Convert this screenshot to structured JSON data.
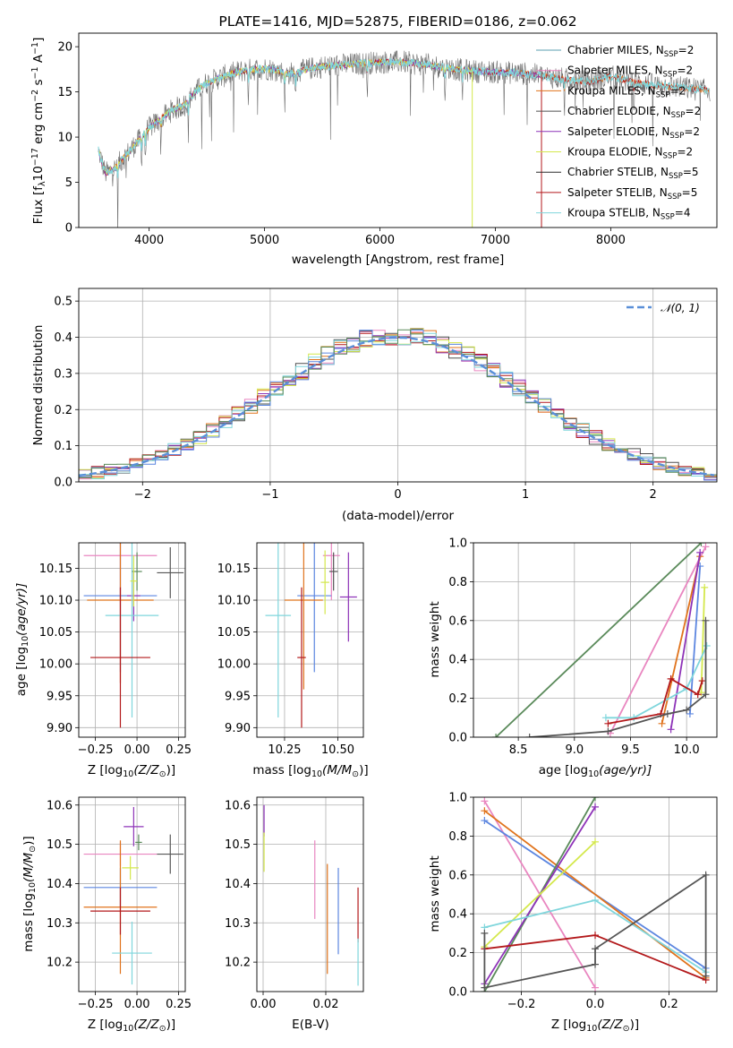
{
  "colors": {
    "chabrier_miles": "#5b9fb0",
    "salpeter_miles": "#e986c0",
    "kroupa_miles": "#e0731c",
    "chabrier_elodie": "#4f4f4f",
    "salpeter_elodie": "#8e33b8",
    "kroupa_elodie": "#d4e84c",
    "chabrier_stelib": "#2b2b2b",
    "salpeter_stelib": "#b3191b",
    "kroupa_stelib": "#7fd6dc",
    "blue_model": "#5c86e0",
    "green_model": "#5a8a5a",
    "gray_model": "#555555",
    "normal_curve": "#5a8fd8"
  },
  "chart_data": [
    {
      "id": "spectrum",
      "type": "line",
      "title": "PLATE=1416, MJD=52875, FIBERID=0186, z=0.062",
      "xlabel": "wavelength [Angstrom, rest frame]",
      "ylabel_pre": "Flux [f",
      "ylabel_sub": "λ",
      "ylabel_mid": "10",
      "ylabel_sup": "−17",
      "ylabel_post": " erg cm",
      "ylabel_sup2": "−2",
      "ylabel_post2": " s",
      "ylabel_sup3": "−1",
      "ylabel_post3": " A",
      "ylabel_sup4": "−1",
      "ylabel_end": "]",
      "xlim": [
        3390,
        8920
      ],
      "ylim": [
        0,
        21.5
      ],
      "xticks": [
        4000,
        5000,
        6000,
        7000,
        8000
      ],
      "yticks": [
        0,
        5,
        10,
        15,
        20
      ],
      "grid": false,
      "legend_position": "right",
      "legend": [
        {
          "name": "Chabrier MILES, N",
          "sub": "SSP",
          "post": "=2",
          "color_key": "chabrier_miles"
        },
        {
          "name": "Salpeter MILES, N",
          "sub": "SSP",
          "post": "=2",
          "color_key": "salpeter_miles"
        },
        {
          "name": "Kroupa MILES, N",
          "sub": "SSP",
          "post": "=2",
          "color_key": "kroupa_miles"
        },
        {
          "name": "Chabrier ELODIE, N",
          "sub": "SSP",
          "post": "=2",
          "color_key": "chabrier_elodie"
        },
        {
          "name": "Salpeter ELODIE, N",
          "sub": "SSP",
          "post": "=2",
          "color_key": "salpeter_elodie"
        },
        {
          "name": "Kroupa ELODIE, N",
          "sub": "SSP",
          "post": "=2",
          "color_key": "kroupa_elodie"
        },
        {
          "name": "Chabrier STELIB, N",
          "sub": "SSP",
          "post": "=5",
          "color_key": "chabrier_stelib"
        },
        {
          "name": "Salpeter STELIB, N",
          "sub": "SSP",
          "post": "=5",
          "color_key": "salpeter_stelib"
        },
        {
          "name": "Kroupa STELIB, N",
          "sub": "SSP",
          "post": "=4",
          "color_key": "kroupa_stelib"
        }
      ],
      "continuum": {
        "x": [
          3560,
          3620,
          3700,
          3800,
          3900,
          4000,
          4100,
          4200,
          4300,
          4400,
          4500,
          4600,
          4700,
          4800,
          4900,
          5000,
          5100,
          5200,
          5300,
          5400,
          5500,
          5600,
          5700,
          5800,
          5900,
          6000,
          6200,
          6400,
          6600,
          6800,
          7000,
          7200,
          7400,
          7600,
          7800,
          8000,
          8200,
          8400,
          8600,
          8800
        ],
        "y": [
          8.5,
          6.0,
          6.5,
          8.0,
          9.5,
          11.0,
          12.0,
          13.0,
          13.5,
          15.0,
          16.0,
          16.5,
          17.0,
          17.3,
          17.5,
          17.6,
          17.4,
          17.0,
          17.2,
          17.6,
          17.8,
          17.9,
          18.0,
          18.1,
          18.2,
          18.3,
          18.3,
          18.0,
          17.6,
          17.3,
          17.2,
          17.1,
          16.8,
          16.4,
          16.1,
          16.7,
          16.1,
          15.7,
          15.5,
          15.2
        ]
      },
      "model_end_wavelengths": [
        6800,
        7400
      ]
    },
    {
      "id": "residuals",
      "type": "line",
      "title": "",
      "xlabel": "(data-model)/error",
      "ylabel": "Normed distribution",
      "xlim": [
        -2.5,
        2.5
      ],
      "ylim": [
        0,
        0.535
      ],
      "xticks": [
        -2,
        -1,
        0,
        1,
        2
      ],
      "yticks": [
        0.0,
        0.1,
        0.2,
        0.3,
        0.4,
        0.5
      ],
      "grid": true,
      "legend_position": "top-right",
      "legend": [
        {
          "name": "𝒩(0, 1)",
          "color_key": "normal_curve"
        }
      ],
      "histogram_bin_width": 0.1,
      "histogram_series": [
        "salpeter_miles",
        "kroupa_miles",
        "chabrier_elodie",
        "salpeter_elodie",
        "kroupa_elodie",
        "salpeter_stelib",
        "kroupa_stelib",
        "blue_model",
        "green_model"
      ]
    },
    {
      "id": "age_vs_z",
      "type": "scatter",
      "xlabel": "Z [log",
      "xlabel_sub": "10",
      "xlabel_post": "(Z/Z",
      "xlabel_sub2": "⊙",
      "xlabel_end": ")]",
      "ylabel": "age  [log",
      "ylabel_sub": "10",
      "ylabel_post": "(age/yr)]",
      "xlim": [
        -0.35,
        0.29
      ],
      "ylim": [
        9.885,
        10.19
      ],
      "xticks": [
        -0.25,
        0.0,
        0.25
      ],
      "xticklabels": [
        "−0.25",
        "0.00",
        "0.25"
      ],
      "yticks": [
        9.9,
        9.95,
        10.0,
        10.05,
        10.1,
        10.15
      ],
      "yticklabels": [
        "9.90",
        "9.95",
        "10.00",
        "10.05",
        "10.10",
        "10.15"
      ],
      "grid": true,
      "points": [
        {
          "x": -0.1,
          "y": 10.17,
          "xerr": 0.22,
          "yerr": 0.07,
          "color_key": "salpeter_miles"
        },
        {
          "x": -0.1,
          "y": 10.107,
          "xerr": 0.22,
          "yerr": 0.12,
          "color_key": "blue_model"
        },
        {
          "x": -0.02,
          "y": 10.107,
          "xerr": 0.04,
          "yerr": 0.04,
          "color_key": "salpeter_elodie"
        },
        {
          "x": -0.1,
          "y": 10.1,
          "xerr": 0.2,
          "yerr": 0.13,
          "color_key": "kroupa_miles"
        },
        {
          "x": -0.03,
          "y": 10.076,
          "xerr": 0.16,
          "yerr": 0.16,
          "color_key": "kroupa_stelib"
        },
        {
          "x": -0.1,
          "y": 10.01,
          "xerr": 0.18,
          "yerr": 0.11,
          "color_key": "salpeter_stelib"
        },
        {
          "x": 0.0,
          "y": 10.145,
          "xerr": 0.03,
          "yerr": 0.03,
          "color_key": "green_model"
        },
        {
          "x": 0.2,
          "y": 10.143,
          "xerr": 0.08,
          "yerr": 0.04,
          "color_key": "gray_model"
        },
        {
          "x": -0.02,
          "y": 10.13,
          "xerr": 0.02,
          "yerr": 0.04,
          "color_key": "kroupa_elodie"
        }
      ]
    },
    {
      "id": "age_vs_mass",
      "type": "scatter",
      "xlabel": "mass [log",
      "xlabel_sub": "10",
      "xlabel_post": "(M/M",
      "xlabel_sub2": "⊙",
      "xlabel_end": ")]",
      "ylabel": "",
      "xlim": [
        10.12,
        10.62
      ],
      "ylim": [
        9.885,
        10.19
      ],
      "xticks": [
        10.25,
        10.5
      ],
      "xticklabels": [
        "10.25",
        "10.50"
      ],
      "yticks": [
        9.9,
        9.95,
        10.0,
        10.05,
        10.1,
        10.15
      ],
      "yticklabels": [
        "9.90",
        "9.95",
        "10.00",
        "10.05",
        "10.10",
        "10.15"
      ],
      "grid": true,
      "points": [
        {
          "x": 10.47,
          "y": 10.17,
          "xerr": 0.04,
          "yerr": 0.07,
          "color_key": "salpeter_miles"
        },
        {
          "x": 10.39,
          "y": 10.107,
          "xerr": 0.08,
          "yerr": 0.12,
          "color_key": "blue_model"
        },
        {
          "x": 10.55,
          "y": 10.105,
          "xerr": 0.04,
          "yerr": 0.07,
          "color_key": "salpeter_elodie"
        },
        {
          "x": 10.34,
          "y": 10.1,
          "xerr": 0.09,
          "yerr": 0.14,
          "color_key": "kroupa_miles"
        },
        {
          "x": 10.22,
          "y": 10.076,
          "xerr": 0.06,
          "yerr": 0.16,
          "color_key": "kroupa_stelib"
        },
        {
          "x": 10.33,
          "y": 10.01,
          "xerr": 0.02,
          "yerr": 0.11,
          "color_key": "salpeter_stelib"
        },
        {
          "x": 10.48,
          "y": 10.145,
          "xerr": 0.02,
          "yerr": 0.03,
          "color_key": "gray_model"
        },
        {
          "x": 10.44,
          "y": 10.128,
          "xerr": 0.02,
          "yerr": 0.05,
          "color_key": "kroupa_elodie"
        }
      ]
    },
    {
      "id": "weight_vs_age",
      "type": "line",
      "xlabel": "age  [log",
      "xlabel_sub": "10",
      "xlabel_post": "(age/yr)]",
      "ylabel": "mass weight",
      "xlim": [
        8.1,
        10.27
      ],
      "ylim": [
        0,
        1.0
      ],
      "xticks": [
        8.5,
        9.0,
        9.5,
        10.0
      ],
      "xticklabels": [
        "8.5",
        "9.0",
        "9.5",
        "10.0"
      ],
      "yticks": [
        0.0,
        0.2,
        0.4,
        0.6,
        0.8,
        1.0
      ],
      "yticklabels": [
        "0.0",
        "0.2",
        "0.4",
        "0.6",
        "0.8",
        "1.0"
      ],
      "grid": true,
      "series": [
        {
          "color_key": "green_model",
          "x": [
            8.3,
            10.13
          ],
          "y": [
            0.0,
            1.0
          ]
        },
        {
          "color_key": "salpeter_miles",
          "x": [
            9.32,
            10.17
          ],
          "y": [
            0.02,
            0.98
          ]
        },
        {
          "color_key": "blue_model",
          "x": [
            10.03,
            10.12
          ],
          "y": [
            0.12,
            0.88
          ]
        },
        {
          "color_key": "kroupa_miles",
          "x": [
            9.78,
            10.12
          ],
          "y": [
            0.07,
            0.93
          ]
        },
        {
          "color_key": "salpeter_elodie",
          "x": [
            9.86,
            10.12
          ],
          "y": [
            0.04,
            0.95
          ]
        },
        {
          "color_key": "kroupa_elodie",
          "x": [
            10.13,
            10.16
          ],
          "y": [
            0.23,
            0.77
          ]
        },
        {
          "color_key": "kroupa_stelib",
          "x": [
            9.28,
            9.53,
            10.0,
            10.18
          ],
          "y": [
            0.1,
            0.1,
            0.25,
            0.47
          ]
        },
        {
          "color_key": "salpeter_stelib",
          "x": [
            9.3,
            9.77,
            9.86,
            10.1,
            10.14
          ],
          "y": [
            0.07,
            0.12,
            0.3,
            0.22,
            0.29
          ]
        },
        {
          "color_key": "gray_model",
          "x": [
            8.6,
            9.3,
            9.83,
            10.0,
            10.17,
            10.17
          ],
          "y": [
            0.0,
            0.03,
            0.12,
            0.14,
            0.22,
            0.6
          ]
        }
      ]
    },
    {
      "id": "mass_vs_z",
      "type": "scatter",
      "xlabel": "Z [log",
      "xlabel_sub": "10",
      "xlabel_post": "(Z/Z",
      "xlabel_sub2": "⊙",
      "xlabel_end": ")]",
      "ylabel": "mass [log",
      "ylabel_sub": "10",
      "ylabel_post": "(M/M",
      "ylabel_sub2": "⊙",
      "ylabel_end": ")]",
      "xlim": [
        -0.35,
        0.29
      ],
      "ylim": [
        10.125,
        10.62
      ],
      "xticks": [
        -0.25,
        0.0,
        0.25
      ],
      "xticklabels": [
        "−0.25",
        "0.00",
        "0.25"
      ],
      "yticks": [
        10.2,
        10.3,
        10.4,
        10.5,
        10.6
      ],
      "yticklabels": [
        "10.2",
        "10.3",
        "10.4",
        "10.5",
        "10.6"
      ],
      "grid": true,
      "points": [
        {
          "x": -0.1,
          "y": 10.475,
          "xerr": 0.22,
          "yerr": 0.03,
          "color_key": "salpeter_miles"
        },
        {
          "x": -0.1,
          "y": 10.39,
          "xerr": 0.22,
          "yerr": 0.05,
          "color_key": "blue_model"
        },
        {
          "x": -0.1,
          "y": 10.34,
          "xerr": 0.22,
          "yerr": 0.17,
          "color_key": "kroupa_miles"
        },
        {
          "x": -0.1,
          "y": 10.33,
          "xerr": 0.18,
          "yerr": 0.06,
          "color_key": "salpeter_stelib"
        },
        {
          "x": -0.03,
          "y": 10.223,
          "xerr": 0.12,
          "yerr": 0.08,
          "color_key": "kroupa_stelib"
        },
        {
          "x": -0.02,
          "y": 10.545,
          "xerr": 0.06,
          "yerr": 0.05,
          "color_key": "salpeter_elodie"
        },
        {
          "x": 0.01,
          "y": 10.505,
          "xerr": 0.02,
          "yerr": 0.02,
          "color_key": "green_model"
        },
        {
          "x": 0.2,
          "y": 10.475,
          "xerr": 0.08,
          "yerr": 0.05,
          "color_key": "gray_model"
        },
        {
          "x": -0.04,
          "y": 10.44,
          "xerr": 0.05,
          "yerr": 0.03,
          "color_key": "kroupa_elodie"
        }
      ]
    },
    {
      "id": "mass_vs_ebv",
      "type": "scatter",
      "xlabel": "E(B-V)",
      "ylabel": "",
      "xlim": [
        -0.002,
        0.032
      ],
      "ylim": [
        10.125,
        10.62
      ],
      "xticks": [
        0.0,
        0.02
      ],
      "xticklabels": [
        "0.00",
        "0.02"
      ],
      "yticks": [
        10.2,
        10.3,
        10.4,
        10.5,
        10.6
      ],
      "yticklabels": [
        "10.2",
        "10.3",
        "10.4",
        "10.5",
        "10.6"
      ],
      "grid": true,
      "points": [
        {
          "x": 0.0003,
          "y": 10.56,
          "xerr": 0.0,
          "yerr": 0.04,
          "color_key": "salpeter_elodie"
        },
        {
          "x": 0.0003,
          "y": 10.48,
          "xerr": 0.0,
          "yerr": 0.05,
          "color_key": "kroupa_elodie"
        },
        {
          "x": 0.0165,
          "y": 10.41,
          "xerr": 0.0,
          "yerr": 0.1,
          "color_key": "salpeter_miles"
        },
        {
          "x": 0.0205,
          "y": 10.31,
          "xerr": 0.0,
          "yerr": 0.14,
          "color_key": "kroupa_miles"
        },
        {
          "x": 0.024,
          "y": 10.33,
          "xerr": 0.0,
          "yerr": 0.11,
          "color_key": "blue_model"
        },
        {
          "x": 0.0303,
          "y": 10.32,
          "xerr": 0.0,
          "yerr": 0.07,
          "color_key": "salpeter_stelib"
        },
        {
          "x": 0.0303,
          "y": 10.2,
          "xerr": 0.0,
          "yerr": 0.06,
          "color_key": "kroupa_stelib"
        }
      ]
    },
    {
      "id": "weight_vs_z",
      "type": "line",
      "xlabel": "Z [log",
      "xlabel_sub": "10",
      "xlabel_post": "(Z/Z",
      "xlabel_sub2": "⊙",
      "xlabel_end": ")]",
      "ylabel": "mass weight",
      "xlim": [
        -0.33,
        0.33
      ],
      "ylim": [
        0,
        1.0
      ],
      "xticks": [
        -0.2,
        0.0,
        0.2
      ],
      "xticklabels": [
        "−0.2",
        "0.0",
        "0.2"
      ],
      "yticks": [
        0.0,
        0.2,
        0.4,
        0.6,
        0.8,
        1.0
      ],
      "yticklabels": [
        "0.0",
        "0.2",
        "0.4",
        "0.6",
        "0.8",
        "1.0"
      ],
      "grid": true,
      "series": [
        {
          "color_key": "salpeter_miles",
          "x": [
            -0.3,
            0.0
          ],
          "y": [
            0.98,
            0.02
          ]
        },
        {
          "color_key": "blue_model",
          "x": [
            -0.3,
            0.3
          ],
          "y": [
            0.88,
            0.12
          ]
        },
        {
          "color_key": "kroupa_miles",
          "x": [
            -0.3,
            0.3
          ],
          "y": [
            0.93,
            0.07
          ]
        },
        {
          "color_key": "green_model",
          "x": [
            -0.3,
            0.0
          ],
          "y": [
            0.0,
            1.0
          ]
        },
        {
          "color_key": "salpeter_elodie",
          "x": [
            -0.3,
            0.0
          ],
          "y": [
            0.04,
            0.95
          ]
        },
        {
          "color_key": "kroupa_elodie",
          "x": [
            -0.3,
            0.0
          ],
          "y": [
            0.23,
            0.77
          ]
        },
        {
          "color_key": "kroupa_stelib",
          "x": [
            -0.3,
            0.0,
            0.3
          ],
          "y": [
            0.33,
            0.47,
            0.1
          ]
        },
        {
          "color_key": "salpeter_stelib",
          "x": [
            -0.3,
            0.0,
            0.3
          ],
          "y": [
            0.22,
            0.29,
            0.06
          ]
        },
        {
          "color_key": "gray_model",
          "x": [
            -0.3,
            -0.3,
            0.0,
            0.0,
            0.3,
            0.3
          ],
          "y": [
            0.3,
            0.02,
            0.14,
            0.22,
            0.6,
            0.08
          ]
        }
      ]
    }
  ]
}
